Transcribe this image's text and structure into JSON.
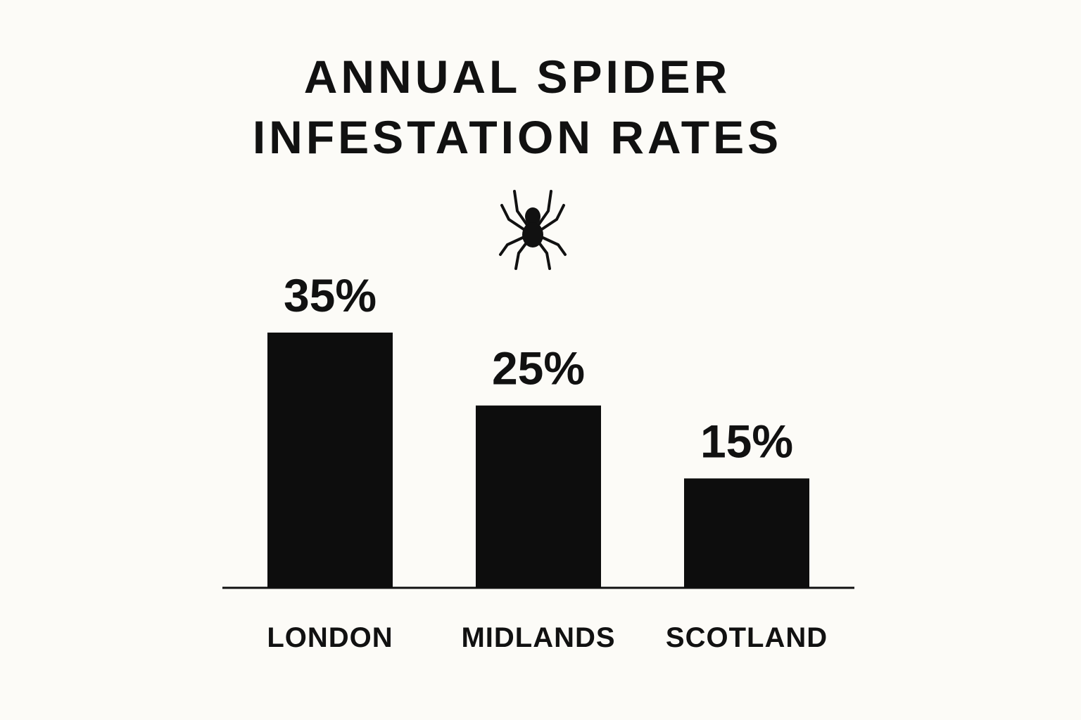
{
  "chart_data": {
    "type": "bar",
    "title": "ANNUAL SPIDER INFESTATION RATES",
    "categories": [
      "LONDON",
      "MIDLANDS",
      "SCOTLAND"
    ],
    "values": [
      35,
      25,
      15
    ],
    "value_labels": [
      "35%",
      "25%",
      "15%"
    ],
    "color": "#0d0d0d"
  }
}
